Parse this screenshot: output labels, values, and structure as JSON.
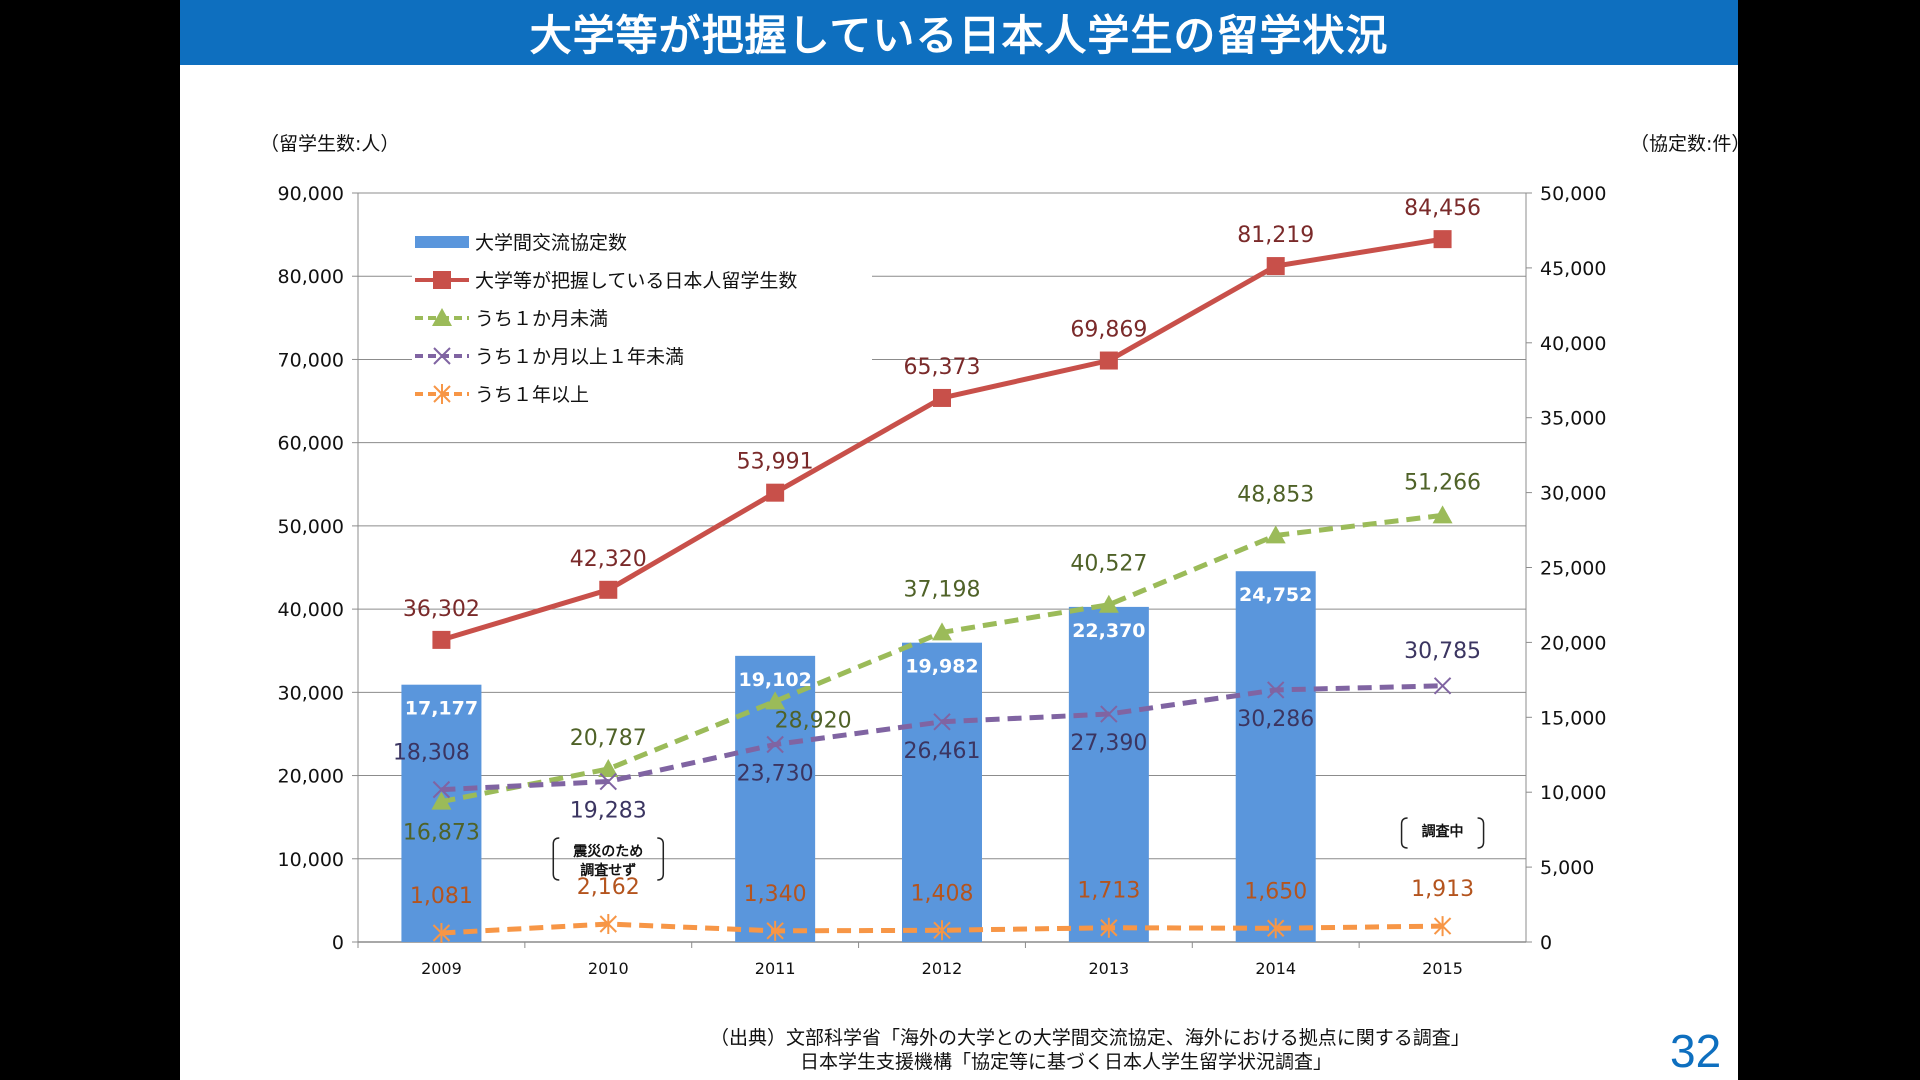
{
  "slide": {
    "title": "大学等が把握している日本人学生の留学状況",
    "page_number": "32",
    "source_lines": [
      "（出典）文部科学省「海外の大学との大学間交流協定、海外における拠点に関する調査」",
      "日本学生支援機構「協定等に基づく日本人学生留学状況調査」"
    ],
    "colors": {
      "title_bar": "#0e6fbf",
      "page_number": "#0e6fbf"
    }
  },
  "chart_data": {
    "type": "bar",
    "left_axis_label": "（留学生数:人）",
    "right_axis_label": "（協定数:件）",
    "x": [
      "2009",
      "2010",
      "2011",
      "2012",
      "2013",
      "2014",
      "2015"
    ],
    "ylim_left": [
      0,
      90000
    ],
    "ylim_right": [
      0,
      50000
    ],
    "left_ticks": [
      "0",
      "10,000",
      "20,000",
      "30,000",
      "40,000",
      "50,000",
      "60,000",
      "70,000",
      "80,000",
      "90,000"
    ],
    "right_ticks": [
      "0",
      "5,000",
      "10,000",
      "15,000",
      "20,000",
      "25,000",
      "30,000",
      "35,000",
      "40,000",
      "45,000",
      "50,000"
    ],
    "grid": true,
    "legend_position": "top-left",
    "series": [
      {
        "name": "大学間交流協定数",
        "type": "bar",
        "axis": "right",
        "color": "#5a96dc",
        "values": [
          17177,
          null,
          19102,
          19982,
          22370,
          24752,
          null
        ],
        "labels": [
          "17,177",
          "",
          "19,102",
          "19,982",
          "22,370",
          "24,752",
          ""
        ]
      },
      {
        "name": "大学等が把握している日本人留学生数",
        "type": "line",
        "axis": "left",
        "color": "#c8504a",
        "marker": "square",
        "dash": "solid",
        "label_color": "#7a2a2a",
        "values": [
          36302,
          42320,
          53991,
          65373,
          69869,
          81219,
          84456
        ],
        "labels": [
          "36,302",
          "42,320",
          "53,991",
          "65,373",
          "69,869",
          "81,219",
          "84,456"
        ]
      },
      {
        "name": "うち１か月未満",
        "type": "line",
        "axis": "left",
        "color": "#9bbb59",
        "marker": "triangle",
        "dash": "dashed",
        "label_color": "#4f6228",
        "values": [
          16873,
          20787,
          28920,
          37198,
          40527,
          48853,
          51266
        ],
        "labels": [
          "16,873",
          "20,787",
          "28,920",
          "37,198",
          "40,527",
          "48,853",
          "51,266"
        ]
      },
      {
        "name": "うち１か月以上１年未満",
        "type": "line",
        "axis": "left",
        "color": "#8064a2",
        "marker": "x",
        "dash": "dashed",
        "label_color": "#3b3561",
        "values": [
          18308,
          19283,
          23730,
          26461,
          27390,
          30286,
          30785
        ],
        "labels": [
          "18,308",
          "19,283",
          "23,730",
          "26,461",
          "27,390",
          "30,286",
          "30,785"
        ]
      },
      {
        "name": "うち１年以上",
        "type": "line",
        "axis": "left",
        "color": "#f79646",
        "marker": "star",
        "dash": "dashed",
        "label_color": "#b4541e",
        "values": [
          1081,
          2162,
          1340,
          1408,
          1713,
          1650,
          1913
        ],
        "labels": [
          "1,081",
          "2,162",
          "1,340",
          "1,408",
          "1,713",
          "1,650",
          "1,913"
        ]
      }
    ],
    "annotations": [
      {
        "category": "2010",
        "lines": [
          "震災のため",
          "調査せず"
        ]
      },
      {
        "category": "2015",
        "lines": [
          "調査中"
        ]
      }
    ]
  }
}
